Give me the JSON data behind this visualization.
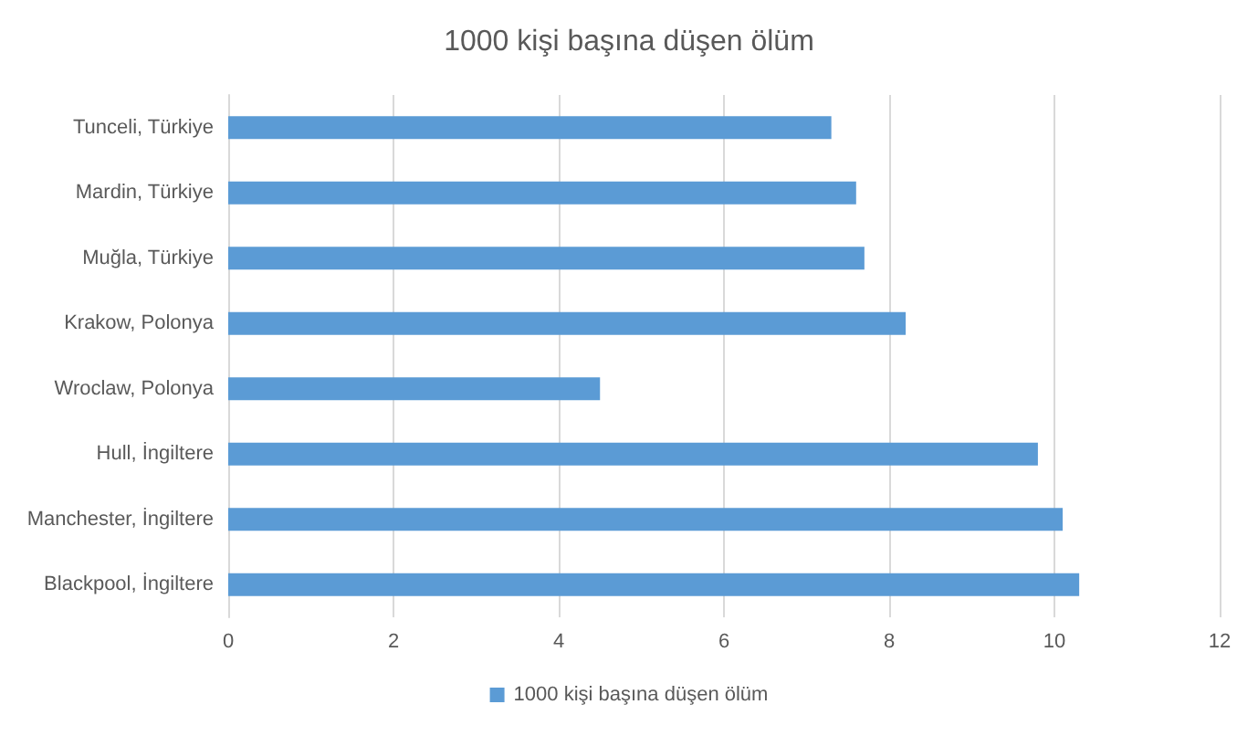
{
  "chart_data": {
    "type": "bar",
    "orientation": "horizontal",
    "title": "1000 kişi başına düşen ölüm",
    "categories": [
      "Tunceli, Türkiye",
      "Mardin, Türkiye",
      "Muğla, Türkiye",
      "Krakow, Polonya",
      "Wroclaw, Polonya",
      "Hull, İngiltere",
      "Manchester, İngiltere",
      "Blackpool, İngiltere"
    ],
    "series": [
      {
        "name": "1000 kişi başına düşen ölüm",
        "color": "#5b9bd5",
        "values": [
          7.3,
          7.6,
          7.7,
          8.2,
          4.5,
          9.8,
          10.1,
          10.3
        ]
      }
    ],
    "xlim": [
      0,
      12
    ],
    "xticks": [
      0,
      2,
      4,
      6,
      8,
      10,
      12
    ],
    "grid": "x",
    "legend": "bottom"
  }
}
